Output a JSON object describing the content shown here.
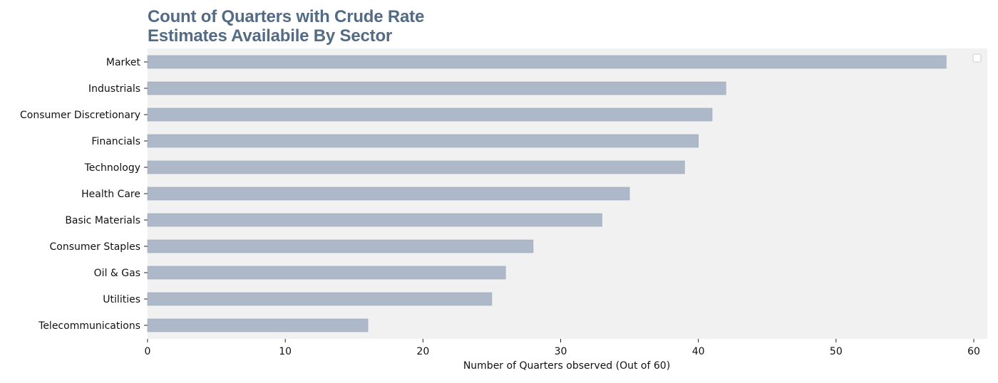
{
  "chart_data": {
    "type": "bar",
    "orientation": "horizontal",
    "title_lines": [
      "Count of Quarters with Crude Rate",
      "Estimates Availabile By Sector"
    ],
    "xlabel": "Number of Quarters observed (Out of 60)",
    "ylabel": "",
    "xlim": [
      0,
      60
    ],
    "xticks": [
      0,
      10,
      20,
      30,
      40,
      50,
      60
    ],
    "categories": [
      "Market",
      "Industrials",
      "Consumer Discretionary",
      "Financials",
      "Technology",
      "Health Care",
      "Basic Materials",
      "Consumer Staples",
      "Oil & Gas",
      "Utilities",
      "Telecommunications"
    ],
    "values": [
      58,
      42,
      41,
      40,
      39,
      35,
      33,
      28,
      26,
      25,
      16
    ],
    "grid": false,
    "legend": "top-right (empty)",
    "colors": {
      "bar": "#adb9c9",
      "bar_edge": "#9aa8ba",
      "plot_background": "#f1f1f1",
      "title": "#546b85"
    }
  }
}
